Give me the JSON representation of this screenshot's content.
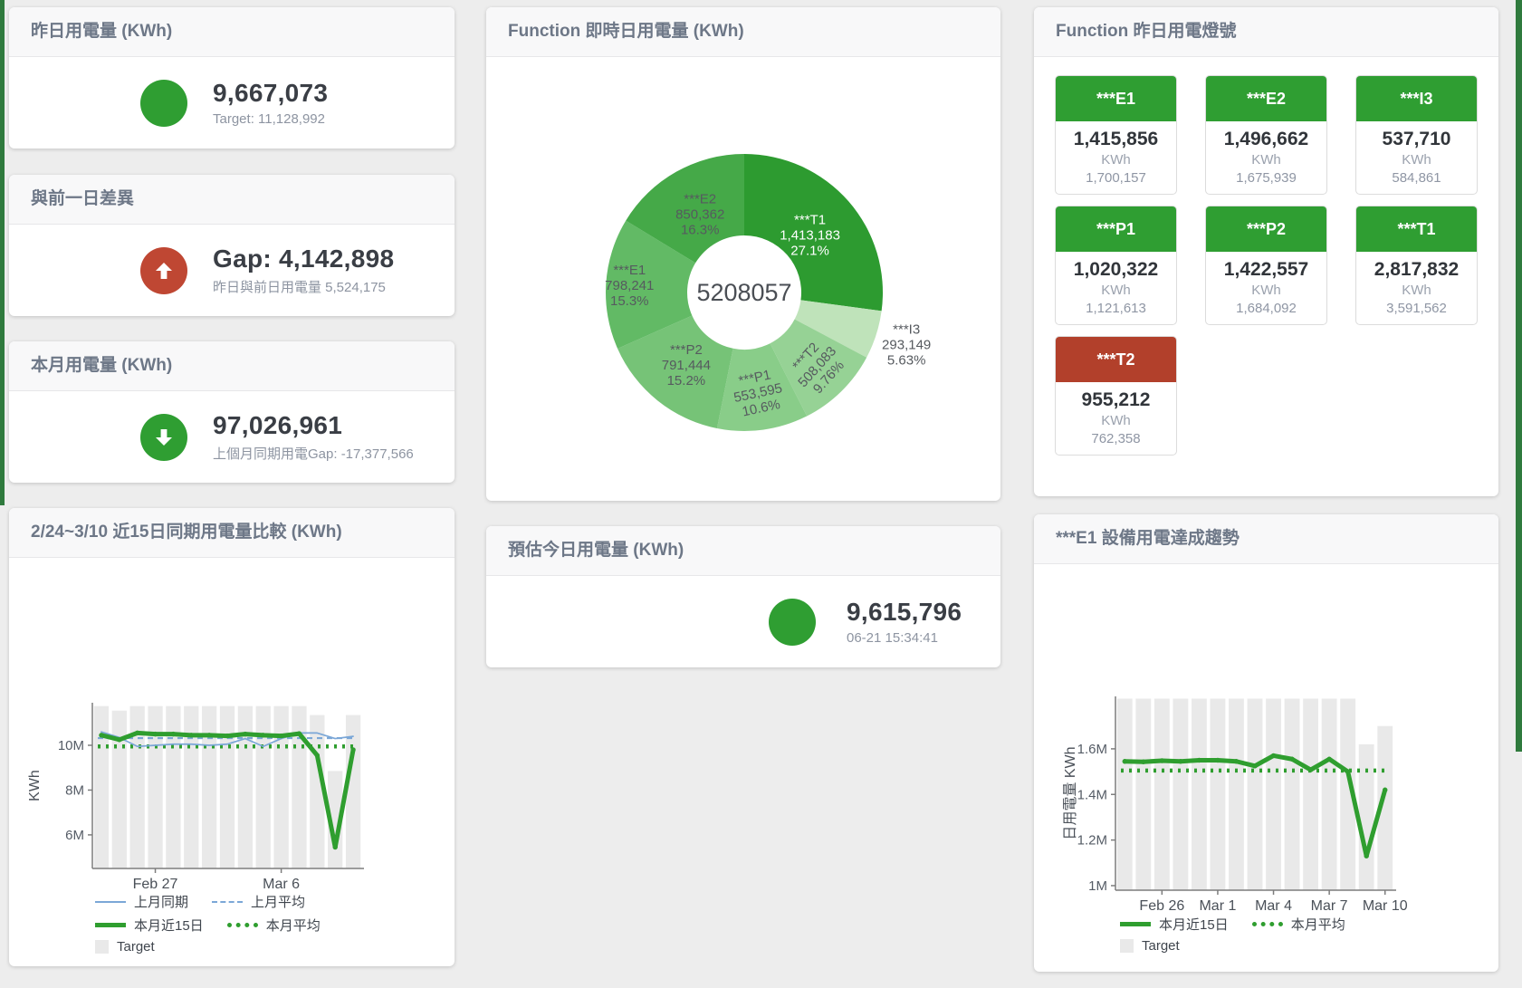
{
  "page": {
    "background": "#ededed",
    "edge_strip_color": "#2f7a3d"
  },
  "cards": {
    "yesterday": {
      "title": "昨日用電量 (KWh)",
      "value": "9,667,073",
      "sub": "Target: 11,128,992",
      "icon": "green-circle",
      "icon_color": "#2f9e32"
    },
    "gap": {
      "title": "與前一日差異",
      "value": "Gap: 4,142,898",
      "sub": "昨日與前日用電量 5,524,175",
      "icon": "arrow-up",
      "icon_color": "#bf4733"
    },
    "month": {
      "title": "本月用電量 (KWh)",
      "value": "97,026,961",
      "sub": "上個月同期用電Gap: -17,377,566",
      "icon": "arrow-down",
      "icon_color": "#2f9e32"
    },
    "estimate": {
      "title": "預估今日用電量 (KWh)",
      "value": "9,615,796",
      "sub": "06-21 15:34:41",
      "icon": "green-circle",
      "icon_color": "#2f9e32"
    },
    "donut": {
      "title": "Function 即時日用電量 (KWh)"
    },
    "lights": {
      "title": "Function 昨日用電燈號",
      "tiles": [
        {
          "label": "***E1",
          "value": "1,415,856",
          "unit": "KWh",
          "target": "1,700,157",
          "color": "#2f9e32"
        },
        {
          "label": "***E2",
          "value": "1,496,662",
          "unit": "KWh",
          "target": "1,675,939",
          "color": "#2f9e32"
        },
        {
          "label": "***I3",
          "value": "537,710",
          "unit": "KWh",
          "target": "584,861",
          "color": "#2f9e32"
        },
        {
          "label": "***P1",
          "value": "1,020,322",
          "unit": "KWh",
          "target": "1,121,613",
          "color": "#2f9e32"
        },
        {
          "label": "***P2",
          "value": "1,422,557",
          "unit": "KWh",
          "target": "1,684,092",
          "color": "#2f9e32"
        },
        {
          "label": "***T1",
          "value": "2,817,832",
          "unit": "KWh",
          "target": "3,591,562",
          "color": "#2f9e32"
        },
        {
          "label": "***T2",
          "value": "955,212",
          "unit": "KWh",
          "target": "762,358",
          "color": "#b2402b"
        }
      ]
    },
    "compare": {
      "title": "2/24~3/10 近15日同期用電量比較 (KWh)"
    },
    "trend": {
      "title": "***E1 設備用電達成趨勢"
    }
  },
  "chart_data": [
    {
      "type": "pie",
      "title": "Function 即時日用電量 (KWh)",
      "center_label": "5208057",
      "legend_position": "none",
      "segments": [
        {
          "name": "***T1",
          "value": 1413183,
          "value_label": "1,413,183",
          "pct": 27.1,
          "pct_label": "27.1%",
          "color": "#2d9b30",
          "label_color": "#ffffff",
          "label_r": 0.63
        },
        {
          "name": "***I3",
          "value": 293149,
          "value_label": "293,149",
          "pct": 5.63,
          "pct_label": "5.63%",
          "color": "#bfe3ba",
          "label_r": 1.23,
          "outside": true
        },
        {
          "name": "***T2",
          "value": 508083,
          "value_label": "508,083",
          "pct": 9.76,
          "pct_label": "9.76%",
          "color": "#96d295",
          "label_r": 0.75,
          "rotate": -48
        },
        {
          "name": "***P1",
          "value": 553595,
          "value_label": "553,595",
          "pct": 10.6,
          "pct_label": "10.6%",
          "color": "#89cd89",
          "label_r": 0.73,
          "rotate": -12
        },
        {
          "name": "***P2",
          "value": 791444,
          "value_label": "791,444",
          "pct": 15.2,
          "pct_label": "15.2%",
          "color": "#76c377",
          "label_r": 0.67
        },
        {
          "name": "***E1",
          "value": 798241,
          "value_label": "798,241",
          "pct": 15.3,
          "pct_label": "15.3%",
          "color": "#62ba65",
          "label_r": 0.83
        },
        {
          "name": "***E2",
          "value": 850362,
          "value_label": "850,362",
          "pct": 16.3,
          "pct_label": "16.3%",
          "color": "#45a948",
          "label_r": 0.65
        }
      ]
    },
    {
      "type": "line+bar",
      "title": "2/24~3/10 近15日同期用電量比較 (KWh)",
      "xlabel": "",
      "ylabel": "KWh",
      "ylim": [
        4.5,
        11.9
      ],
      "grid": false,
      "unit": "M",
      "categories": [
        "2/24",
        "2/25",
        "2/26",
        "2/27",
        "2/28",
        "3/1",
        "3/2",
        "3/3",
        "3/4",
        "3/5",
        "3/6",
        "3/7",
        "3/8",
        "3/9",
        "3/10"
      ],
      "yticks": [
        {
          "v": 6,
          "label": "6M"
        },
        {
          "v": 8,
          "label": "8M"
        },
        {
          "v": 10,
          "label": "10M"
        }
      ],
      "xticks": [
        {
          "i": 3,
          "label": "Feb 27"
        },
        {
          "i": 10,
          "label": "Mar 6"
        }
      ],
      "series": [
        {
          "name": "Target",
          "type": "bar",
          "color": "#e9e9e9",
          "values": [
            11.75,
            11.55,
            11.75,
            11.75,
            11.75,
            11.75,
            11.75,
            11.75,
            11.75,
            11.75,
            11.75,
            11.75,
            11.35,
            8.85,
            11.35
          ]
        },
        {
          "name": "上月平均",
          "type": "dash",
          "color": "#7ba7d7",
          "const": 10.32
        },
        {
          "name": "本月平均",
          "type": "dots",
          "color": "#2f9e2f",
          "const": 9.95
        },
        {
          "name": "上月同期",
          "type": "line",
          "color": "#7ba7d7",
          "width": 1.7,
          "values": [
            10.6,
            10.35,
            9.95,
            10.0,
            10.05,
            10.05,
            10.0,
            10.05,
            10.3,
            9.95,
            10.3,
            10.55,
            10.55,
            10.3,
            10.4
          ]
        },
        {
          "name": "本月近15日",
          "type": "line",
          "color": "#2f9e2f",
          "width": 5,
          "markers": true,
          "values": [
            10.45,
            10.25,
            10.55,
            10.5,
            10.5,
            10.45,
            10.45,
            10.42,
            10.5,
            10.45,
            10.42,
            10.52,
            9.55,
            5.45,
            9.8
          ]
        }
      ],
      "legend": [
        [
          {
            "label": "上月同期",
            "swatch": "line",
            "w": 2,
            "color": "#7ba7d7"
          },
          {
            "label": "上月平均",
            "swatch": "dash",
            "color": "#7ba7d7"
          }
        ],
        [
          {
            "label": "本月近15日",
            "swatch": "line",
            "w": 5,
            "color": "#2f9e2f"
          },
          {
            "label": "本月平均",
            "swatch": "dots",
            "color": "#2f9e2f"
          }
        ],
        [
          {
            "label": "Target",
            "swatch": "bar",
            "color": "#e9e9e9"
          }
        ]
      ]
    },
    {
      "type": "line+bar",
      "title": "***E1 設備用電達成趨勢",
      "xlabel": "",
      "ylabel": "日用電量 KWh",
      "ylim": [
        0.98,
        1.83
      ],
      "grid": false,
      "unit": "M",
      "categories": [
        "2/24",
        "2/25",
        "2/26",
        "2/27",
        "2/28",
        "3/1",
        "3/2",
        "3/3",
        "3/4",
        "3/5",
        "3/6",
        "3/7",
        "3/8",
        "3/9",
        "3/10"
      ],
      "yticks": [
        {
          "v": 1,
          "label": "1M"
        },
        {
          "v": 1.2,
          "label": "1.2M"
        },
        {
          "v": 1.4,
          "label": "1.4M"
        },
        {
          "v": 1.6,
          "label": "1.6M"
        }
      ],
      "xticks": [
        {
          "i": 2,
          "label": "Feb 26"
        },
        {
          "i": 5,
          "label": "Mar 1"
        },
        {
          "i": 8,
          "label": "Mar 4"
        },
        {
          "i": 11,
          "label": "Mar 7"
        },
        {
          "i": 14,
          "label": "Mar 10"
        }
      ],
      "series": [
        {
          "name": "Target",
          "type": "bar",
          "color": "#e9e9e9",
          "values": [
            1.82,
            1.82,
            1.82,
            1.82,
            1.82,
            1.82,
            1.82,
            1.82,
            1.82,
            1.82,
            1.82,
            1.82,
            1.82,
            1.62,
            1.7
          ]
        },
        {
          "name": "本月平均",
          "type": "dots",
          "color": "#2f9e2f",
          "const": 1.505
        },
        {
          "name": "本月近15日",
          "type": "line",
          "color": "#2f9e2f",
          "width": 5,
          "markers": true,
          "values": [
            1.545,
            1.543,
            1.548,
            1.545,
            1.55,
            1.55,
            1.545,
            1.525,
            1.57,
            1.555,
            1.508,
            1.555,
            1.5,
            1.13,
            1.42
          ]
        }
      ],
      "legend": [
        [
          {
            "label": "本月近15日",
            "swatch": "line",
            "w": 5,
            "color": "#2f9e2f"
          },
          {
            "label": "本月平均",
            "swatch": "dots",
            "color": "#2f9e2f"
          }
        ],
        [
          {
            "label": "Target",
            "swatch": "bar",
            "color": "#e9e9e9"
          }
        ]
      ]
    }
  ]
}
